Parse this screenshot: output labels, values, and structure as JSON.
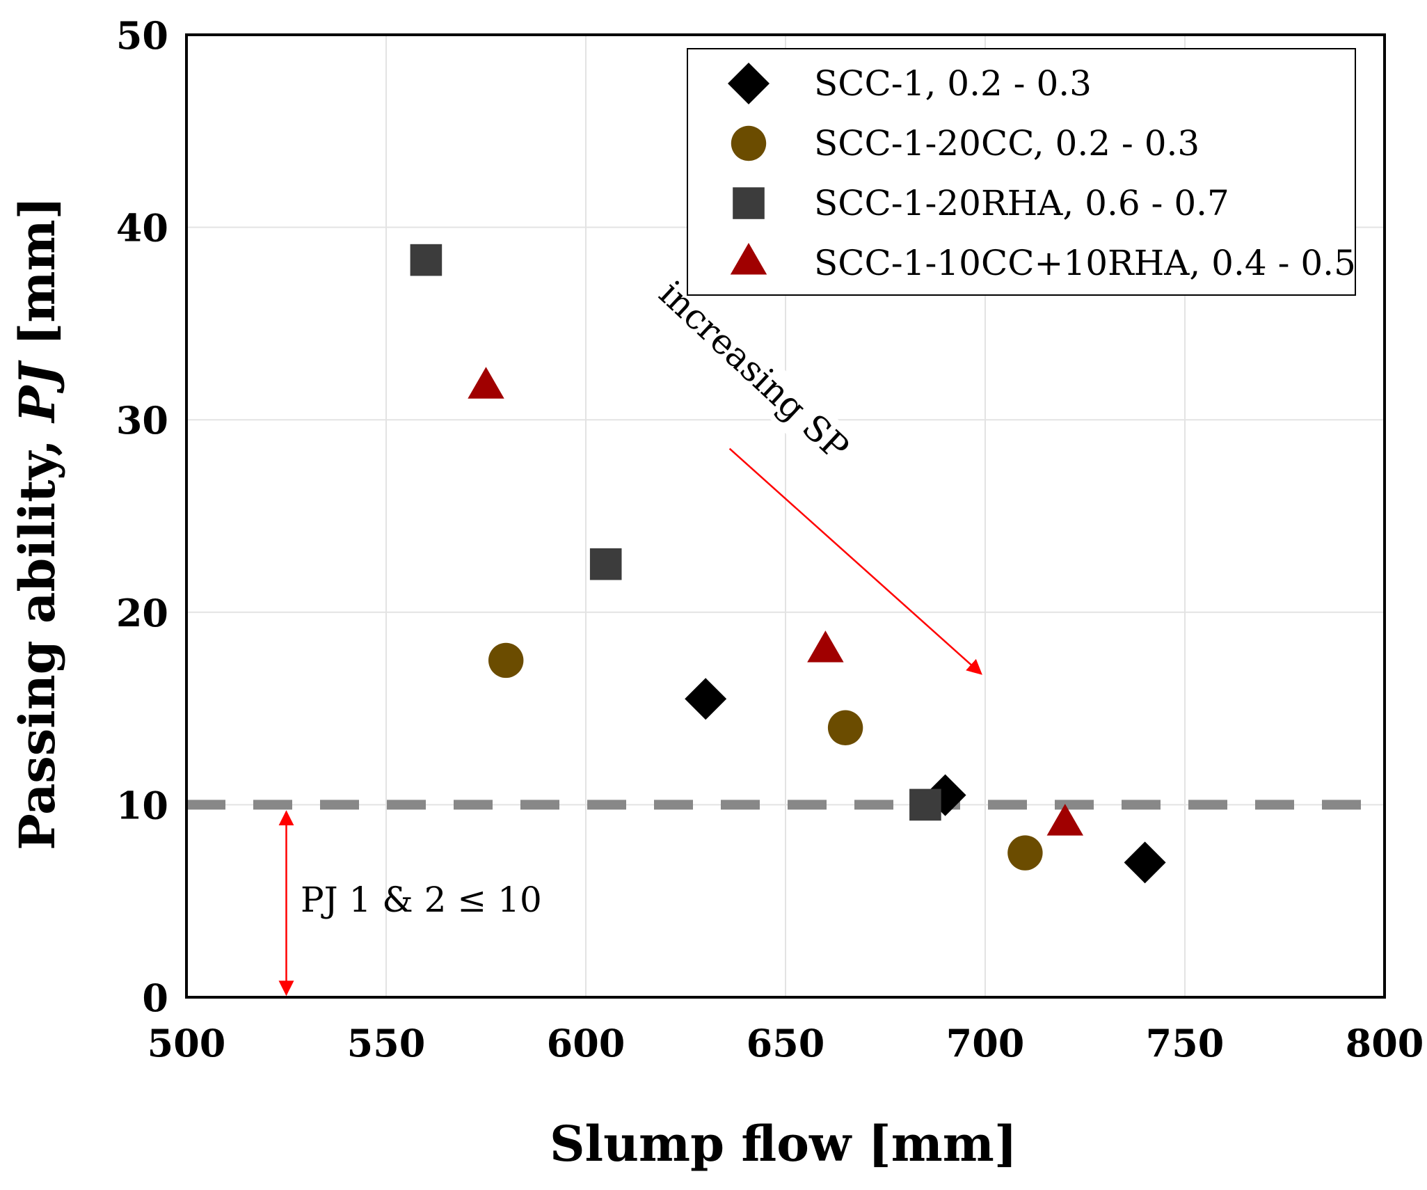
{
  "chart_data": {
    "type": "scatter",
    "title": "",
    "xlabel": "Slump flow [mm]",
    "ylabel_prefix": "Passing ability, ",
    "ylabel_italic": "PJ",
    "ylabel_suffix": " [mm]",
    "xlim": [
      500,
      800
    ],
    "ylim": [
      0,
      50
    ],
    "x_ticks": [
      500,
      550,
      600,
      650,
      700,
      750,
      800
    ],
    "y_ticks": [
      0,
      10,
      20,
      30,
      40,
      50
    ],
    "grid": true,
    "legend_position": "top-right",
    "series": [
      {
        "name": "SCC-1, 0.2 - 0.3",
        "marker": "diamond",
        "color": "#000000",
        "points": [
          [
            630,
            15.5
          ],
          [
            690,
            10.5
          ],
          [
            740,
            7.0
          ]
        ]
      },
      {
        "name": "SCC-1-20CC, 0.2 - 0.3",
        "marker": "circle",
        "color": "#6b4c00",
        "points": [
          [
            580,
            17.5
          ],
          [
            665,
            14.0
          ],
          [
            710,
            7.5
          ]
        ]
      },
      {
        "name": "SCC-1-20RHA, 0.6 - 0.7",
        "marker": "square",
        "color": "#3c3c3c",
        "points": [
          [
            560,
            38.3
          ],
          [
            605,
            22.5
          ],
          [
            685,
            10.0
          ]
        ]
      },
      {
        "name": "SCC-1-10CC+10RHA, 0.4 - 0.5",
        "marker": "triangle",
        "color": "#a00000",
        "points": [
          [
            575,
            31.7
          ],
          [
            660,
            18.0
          ],
          [
            720,
            9.0
          ]
        ]
      }
    ],
    "reference_line": {
      "y": 10,
      "style": "dashed",
      "color": "#888888"
    },
    "annotations": [
      {
        "text": "increasing SP",
        "arrow_from": [
          636,
          28.5
        ],
        "arrow_to": [
          699,
          16.8
        ],
        "color": "#ff0000"
      },
      {
        "text": "PJ 1 & 2 ≤ 10",
        "arrow_x": 525,
        "arrow_from_y": 0,
        "arrow_to_y": 10,
        "color": "#ff0000"
      }
    ]
  }
}
